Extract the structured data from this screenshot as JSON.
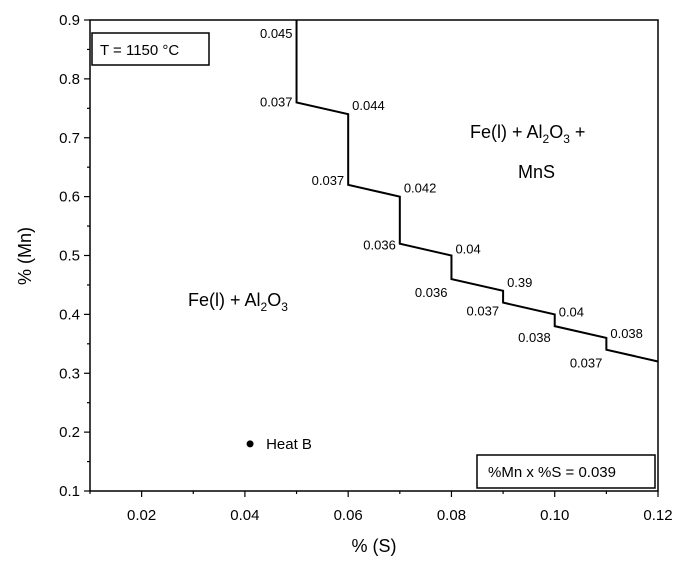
{
  "chart_data": {
    "type": "line",
    "title": "",
    "xlabel": "% (S)",
    "ylabel": "% (Mn)",
    "xlim": [
      0.01,
      0.12
    ],
    "ylim": [
      0.1,
      0.9
    ],
    "x_ticks": [
      0.02,
      0.04,
      0.06,
      0.08,
      0.1,
      0.12
    ],
    "x_tick_labels": [
      "0.02",
      "0.04",
      "0.06",
      "0.08",
      "0.10",
      "0.12"
    ],
    "y_ticks": [
      0.1,
      0.2,
      0.3,
      0.4,
      0.5,
      0.6,
      0.7,
      0.8,
      0.9
    ],
    "y_tick_labels": [
      "0.1",
      "0.2",
      "0.3",
      "0.4",
      "0.5",
      "0.6",
      "0.7",
      "0.8",
      "0.9"
    ],
    "grid": false,
    "series": [
      {
        "points": [
          {
            "x": 0.05,
            "y": 0.9
          },
          {
            "x": 0.05,
            "y": 0.76
          },
          {
            "x": 0.06,
            "y": 0.74
          },
          {
            "x": 0.06,
            "y": 0.62
          },
          {
            "x": 0.07,
            "y": 0.6
          },
          {
            "x": 0.07,
            "y": 0.52
          },
          {
            "x": 0.08,
            "y": 0.5
          },
          {
            "x": 0.08,
            "y": 0.46
          },
          {
            "x": 0.09,
            "y": 0.44
          },
          {
            "x": 0.09,
            "y": 0.42
          },
          {
            "x": 0.1,
            "y": 0.4
          },
          {
            "x": 0.1,
            "y": 0.38
          },
          {
            "x": 0.11,
            "y": 0.36
          },
          {
            "x": 0.11,
            "y": 0.34
          },
          {
            "x": 0.12,
            "y": 0.32
          }
        ]
      }
    ],
    "point_annotations": [
      {
        "text": "0.045",
        "x": 0.05,
        "y": 0.9,
        "anchor": "end",
        "dx": -4,
        "dy": 18
      },
      {
        "text": "0.037",
        "x": 0.05,
        "y": 0.76,
        "anchor": "end",
        "dx": -4,
        "dy": 4
      },
      {
        "text": "0.044",
        "x": 0.06,
        "y": 0.74,
        "anchor": "start",
        "dx": 4,
        "dy": -4
      },
      {
        "text": "0.037",
        "x": 0.06,
        "y": 0.62,
        "anchor": "end",
        "dx": -4,
        "dy": 0
      },
      {
        "text": "0.042",
        "x": 0.07,
        "y": 0.6,
        "anchor": "start",
        "dx": 4,
        "dy": -4
      },
      {
        "text": "0.036",
        "x": 0.07,
        "y": 0.52,
        "anchor": "end",
        "dx": -4,
        "dy": 6
      },
      {
        "text": "0.04",
        "x": 0.08,
        "y": 0.5,
        "anchor": "start",
        "dx": 4,
        "dy": -2
      },
      {
        "text": "0.036",
        "x": 0.08,
        "y": 0.46,
        "anchor": "end",
        "dx": -4,
        "dy": 18
      },
      {
        "text": "0.39",
        "x": 0.09,
        "y": 0.44,
        "anchor": "start",
        "dx": 4,
        "dy": -4
      },
      {
        "text": "0.037",
        "x": 0.09,
        "y": 0.42,
        "anchor": "end",
        "dx": -4,
        "dy": 13
      },
      {
        "text": "0.04",
        "x": 0.1,
        "y": 0.4,
        "anchor": "start",
        "dx": 4,
        "dy": 2
      },
      {
        "text": "0.038",
        "x": 0.1,
        "y": 0.38,
        "anchor": "end",
        "dx": -4,
        "dy": 16
      },
      {
        "text": "0.038",
        "x": 0.11,
        "y": 0.36,
        "anchor": "start",
        "dx": 4,
        "dy": 0
      },
      {
        "text": "0.037",
        "x": 0.11,
        "y": 0.34,
        "anchor": "end",
        "dx": -4,
        "dy": 18
      }
    ],
    "region_labels": {
      "upper_right_line1_prefix": "Fe(l) + Al",
      "upper_right_line1_sub1": "2",
      "upper_right_line1_mid": "O",
      "upper_right_line1_sub2": "3",
      "upper_right_line1_suffix": " +",
      "upper_right_line2": "MnS",
      "lower_left_prefix": "Fe(l) + Al",
      "lower_left_sub1": "2",
      "lower_left_mid": "O",
      "lower_left_sub2": "3"
    },
    "marker": {
      "label": "Heat B",
      "x": 0.041,
      "y": 0.18
    },
    "temperature_box": "T = 1150 °C",
    "product_box": "%Mn x %S = 0.039"
  }
}
